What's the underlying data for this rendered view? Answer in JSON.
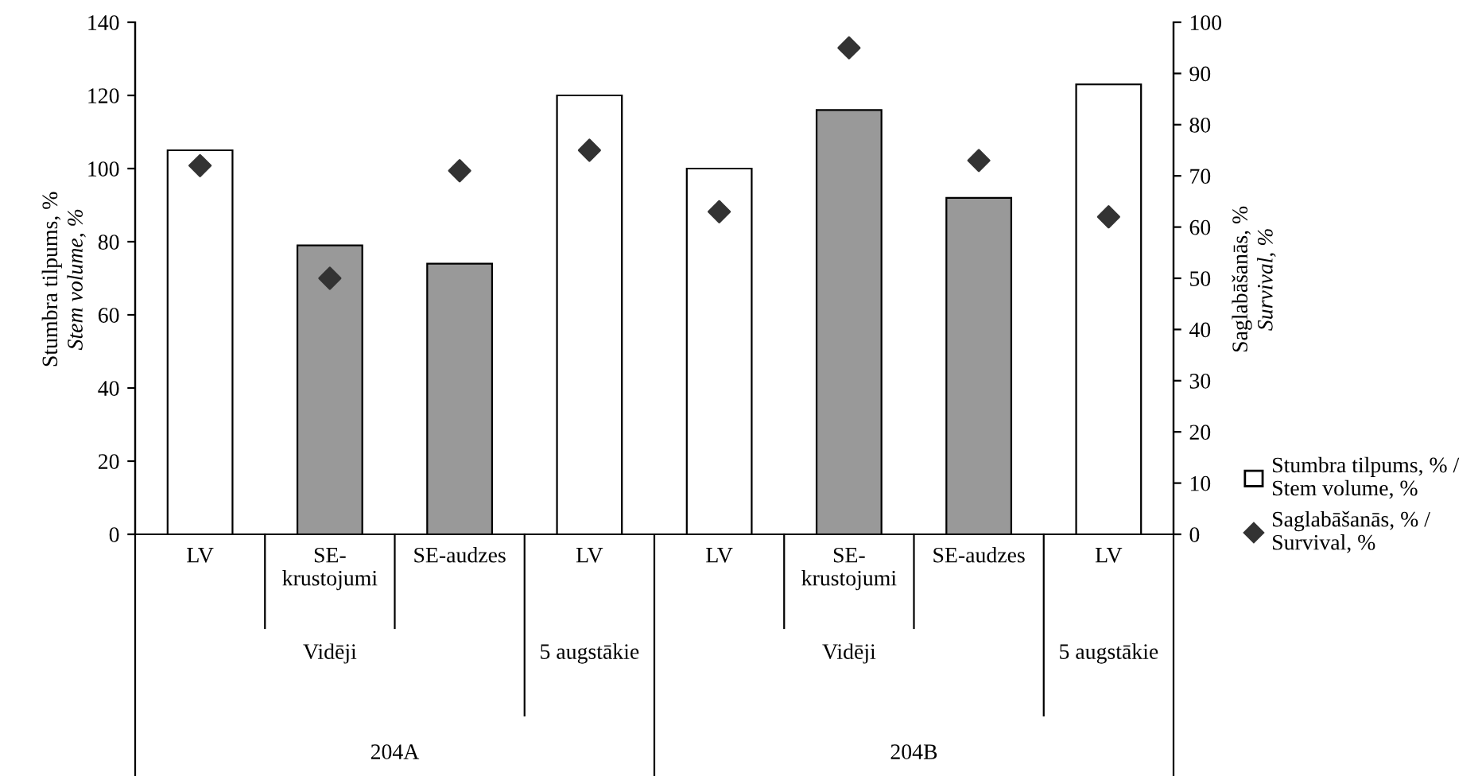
{
  "chart_data": {
    "type": "bar",
    "ylabel": "Stumbra tilpums, %\nStem volume, %",
    "y2label": "Saglabāšanās, %\nSurvival, %",
    "categories": [
      "LV",
      "SE-\nkrustojumi",
      "SE-audzes",
      "LV",
      "LV",
      "SE-\nkrustojumi",
      "SE-audzes",
      "LV"
    ],
    "annotations": [
      "Vidēji",
      "5 augstākie",
      "Vidēji",
      "5 augstākie",
      "204A",
      "204B"
    ],
    "series": [
      {
        "name": "Stumbra tilpums, % /\nStem volume, %",
        "colors": [
          "#ffffff",
          "#999999",
          "#999999",
          "#ffffff",
          "#ffffff",
          "#999999",
          "#999999",
          "#ffffff"
        ],
        "values": [
          105,
          79,
          74,
          120,
          100,
          116,
          92,
          123
        ]
      },
      {
        "name": "Saglabāšanās, % /\nSurvival, %",
        "type": "scatter",
        "axis": "y2",
        "color": "#333333",
        "marker": "diamond",
        "values": [
          72,
          50,
          71,
          75,
          63,
          95,
          73,
          62
        ]
      }
    ],
    "ylim": [
      0,
      140
    ],
    "yticks": [
      0,
      20,
      40,
      60,
      80,
      100,
      120,
      140
    ],
    "y2lim": [
      0,
      100
    ],
    "y2ticks": [
      0,
      10,
      20,
      30,
      40,
      50,
      60,
      70,
      80,
      90,
      100
    ],
    "grid": false,
    "legend": "bottom right"
  }
}
